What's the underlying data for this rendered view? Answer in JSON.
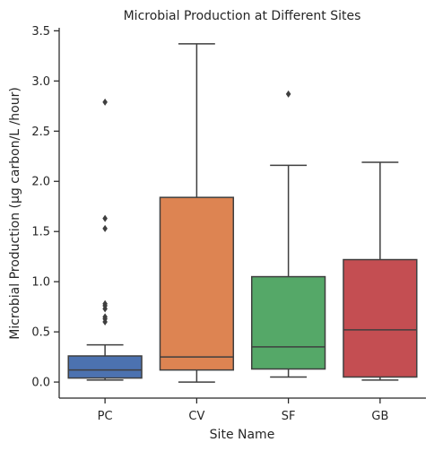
{
  "chart_data": {
    "type": "box",
    "title": "Microbial Production at Different Sites",
    "xlabel": "Site Name",
    "ylabel": "Microbial Production (µg carbon/L /hour)",
    "ylim": [
      -0.16,
      3.53
    ],
    "yticks": [
      0.0,
      0.5,
      1.0,
      1.5,
      2.0,
      2.5,
      3.0,
      3.5
    ],
    "ytick_labels": [
      "0.0",
      "0.5",
      "1.0",
      "1.5",
      "2.0",
      "2.5",
      "3.0",
      "3.5"
    ],
    "grid": false,
    "categories": [
      "PC",
      "CV",
      "SF",
      "GB"
    ],
    "colors": [
      "#4c72b0",
      "#dd8452",
      "#55a868",
      "#c44e52"
    ],
    "boxes": [
      {
        "name": "PC",
        "whislo": 0.02,
        "q1": 0.04,
        "med": 0.12,
        "q3": 0.26,
        "whishi": 0.37,
        "fliers": [
          0.6,
          0.63,
          0.65,
          0.73,
          0.76,
          0.78,
          1.53,
          1.63,
          2.79
        ]
      },
      {
        "name": "CV",
        "whislo": 0.0,
        "q1": 0.12,
        "med": 0.25,
        "q3": 1.84,
        "whishi": 3.37,
        "fliers": []
      },
      {
        "name": "SF",
        "whislo": 0.05,
        "q1": 0.13,
        "med": 0.35,
        "q3": 1.05,
        "whishi": 2.16,
        "fliers": [
          2.87
        ]
      },
      {
        "name": "GB",
        "whislo": 0.02,
        "q1": 0.05,
        "med": 0.52,
        "q3": 1.22,
        "whishi": 2.19,
        "fliers": []
      }
    ]
  }
}
